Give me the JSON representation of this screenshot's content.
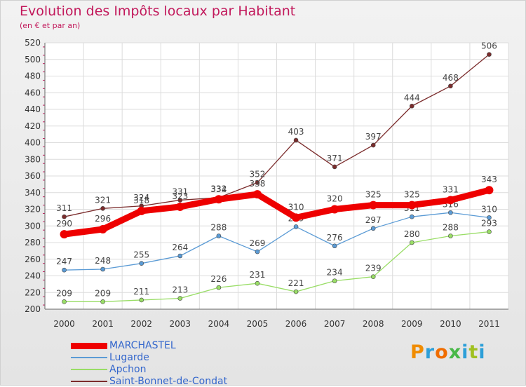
{
  "header": {
    "title": "Evolution des Impôts locaux par Habitant",
    "subtitle": "(en € et par an)"
  },
  "logo": {
    "text": "Proxiti"
  },
  "chart_data": {
    "type": "line",
    "title": "Evolution des Impôts locaux par Habitant",
    "subtitle": "(en € et par an)",
    "xlabel": "",
    "ylabel": "",
    "categories": [
      "2000",
      "2001",
      "2002",
      "2003",
      "2004",
      "2005",
      "2006",
      "2007",
      "2008",
      "2009",
      "2010",
      "2011"
    ],
    "ylim": [
      200,
      520
    ],
    "yticks": [
      200,
      220,
      240,
      260,
      280,
      300,
      320,
      340,
      360,
      380,
      400,
      420,
      440,
      460,
      480,
      500,
      520
    ],
    "grid": true,
    "legend_position": "bottom-left",
    "series": [
      {
        "name": "MARCHASTEL",
        "color": "#ee0000",
        "values": [
          290,
          296,
          318,
          323,
          332,
          338,
          310,
          320,
          325,
          325,
          331,
          343
        ]
      },
      {
        "name": "Lugarde",
        "color": "#5b9bd5",
        "values": [
          247,
          248,
          255,
          264,
          288,
          269,
          299,
          276,
          297,
          311,
          316,
          310
        ]
      },
      {
        "name": "Apchon",
        "color": "#99dd66",
        "values": [
          209,
          209,
          211,
          213,
          226,
          231,
          221,
          234,
          239,
          280,
          288,
          293
        ]
      },
      {
        "name": "Saint-Bonnet-de-Condat",
        "color": "#7b2c2c",
        "values": [
          311,
          321,
          324,
          331,
          334,
          352,
          403,
          371,
          397,
          444,
          468,
          506
        ]
      }
    ]
  }
}
